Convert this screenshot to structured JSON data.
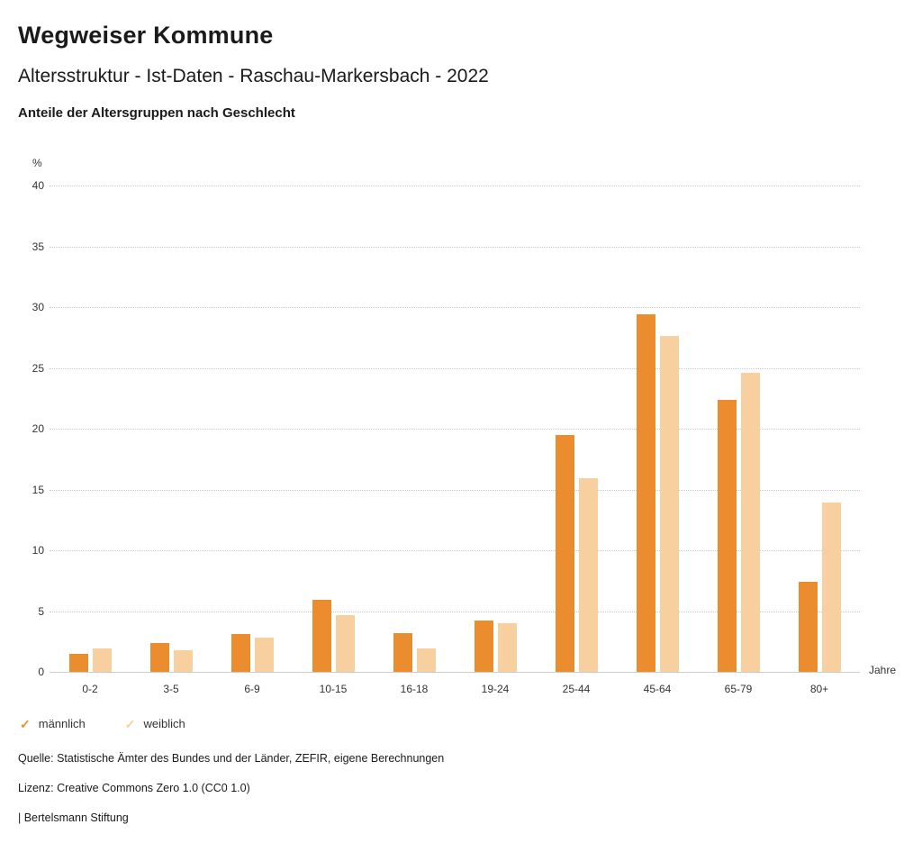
{
  "header": {
    "title": "Wegweiser Kommune",
    "subtitle": "Altersstruktur - Ist-Daten - Raschau-Markersbach - 2022",
    "description": "Anteile der Altersgruppen nach Geschlecht"
  },
  "chart_data": {
    "type": "bar",
    "title": "Anteile der Altersgruppen nach Geschlecht",
    "categories": [
      "0-2",
      "3-5",
      "6-9",
      "10-15",
      "16-18",
      "19-24",
      "25-44",
      "45-64",
      "65-79",
      "80+"
    ],
    "series": [
      {
        "name": "männlich",
        "color": "#EB8C2F",
        "values": [
          1.5,
          2.4,
          3.1,
          5.9,
          3.2,
          4.2,
          19.5,
          29.4,
          22.4,
          7.4
        ]
      },
      {
        "name": "weiblich",
        "color": "#F8D0A0",
        "values": [
          1.9,
          1.8,
          2.8,
          4.7,
          1.9,
          4.0,
          15.9,
          27.6,
          24.6,
          13.9
        ]
      }
    ],
    "xlabel": "Jahre",
    "ylabel": "%",
    "ylim": [
      0,
      40
    ],
    "yticks": [
      0,
      5,
      10,
      15,
      20,
      25,
      30,
      35,
      40
    ],
    "grid": true,
    "legend_position": "bottom"
  },
  "legend": {
    "check_glyph": "✓"
  },
  "footer": {
    "source": "Quelle: Statistische Ämter des Bundes und der Länder, ZEFIR, eigene Berechnungen",
    "license": "Lizenz: Creative Commons Zero 1.0 (CC0 1.0)",
    "attribution": "| Bertelsmann Stiftung"
  }
}
